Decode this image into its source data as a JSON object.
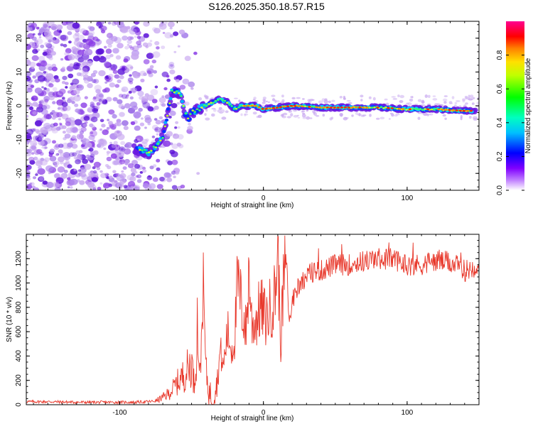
{
  "title": "S126.2025.350.18.57.R15",
  "colors": {
    "snr_line": "#e8382b",
    "axis": "#000000",
    "scatter_low": "#c8a8f0",
    "scatter_mid": "#8a3ce6",
    "scatter_high": "#5a10d8"
  },
  "chart_data": [
    {
      "type": "heatmap",
      "title": "S126.2025.350.18.57.R15",
      "xlabel": "Height of straight line (km)",
      "ylabel": "Frequency (Hz)",
      "xlim": [
        -165,
        150
      ],
      "ylim": [
        -25,
        25
      ],
      "xticks": [
        -100,
        0,
        100
      ],
      "yticks": [
        -20,
        -10,
        0,
        10,
        20
      ],
      "colorbar": {
        "label": "Normalized spectral amplitude",
        "range": [
          0,
          1
        ],
        "ticks": [
          "0.0",
          "0.2",
          "0.4",
          "0.6",
          "0.8"
        ],
        "colormap": [
          "#ffffff",
          "#8000ff",
          "#0000ff",
          "#00ffff",
          "#00ff00",
          "#ffff00",
          "#ff8000",
          "#ff0000",
          "#ff00a0"
        ]
      },
      "ridge": {
        "height_km": [
          -90,
          -85,
          -80,
          -75,
          -70,
          -67,
          -64,
          -60,
          -57,
          -55,
          -52,
          -50,
          -45,
          -40,
          -35,
          -30,
          -25,
          -20,
          -15,
          -10,
          -5,
          0,
          10,
          20,
          40,
          60,
          80,
          100,
          120,
          140,
          148
        ],
        "frequency_hz": [
          -13,
          -13,
          -14,
          -12,
          -9,
          -3,
          4,
          4,
          3,
          -2,
          -4,
          -2,
          -1,
          0,
          1,
          2,
          1,
          -1,
          0,
          0,
          0,
          -1,
          -0.5,
          0,
          -0.5,
          -0.5,
          -0.5,
          -1,
          -1,
          -1.5,
          -1.5
        ]
      }
    },
    {
      "type": "line",
      "xlabel": "Height of straight line (km)",
      "ylabel": "SNR (10 * v/v)",
      "xlim": [
        -165,
        150
      ],
      "ylim": [
        0,
        1400
      ],
      "xticks": [
        -100,
        0,
        100
      ],
      "yticks": [
        0,
        200,
        400,
        600,
        800,
        1000,
        1200
      ],
      "series": [
        {
          "name": "SNR",
          "x": [
            -165,
            -150,
            -130,
            -110,
            -90,
            -80,
            -75,
            -70,
            -65,
            -60,
            -55,
            -50,
            -48,
            -46,
            -44,
            -42,
            -40,
            -38,
            -35,
            -32,
            -30,
            -28,
            -25,
            -22,
            -20,
            -18,
            -15,
            -12,
            -10,
            -8,
            -5,
            -2,
            0,
            2,
            5,
            8,
            10,
            12,
            14,
            16,
            18,
            20,
            25,
            30,
            35,
            40,
            50,
            60,
            70,
            80,
            90,
            100,
            110,
            120,
            130,
            140,
            150
          ],
          "values": [
            25,
            25,
            20,
            20,
            20,
            25,
            30,
            60,
            100,
            180,
            250,
            350,
            150,
            650,
            200,
            1000,
            300,
            100,
            60,
            200,
            450,
            300,
            600,
            450,
            550,
            1000,
            800,
            600,
            1100,
            650,
            700,
            800,
            750,
            700,
            800,
            900,
            1300,
            500,
            1000,
            1200,
            650,
            850,
            1000,
            1050,
            1100,
            1100,
            1150,
            1150,
            1180,
            1200,
            1200,
            1150,
            1150,
            1180,
            1170,
            1100,
            1150
          ]
        }
      ]
    }
  ]
}
